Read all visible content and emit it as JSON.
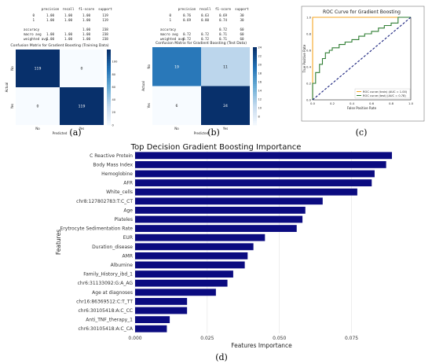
{
  "panel_labels": [
    "(a)",
    "(b)",
    "(c)",
    "(d)"
  ],
  "report_train": {
    "header": [
      "precision",
      "recall",
      "f1-score",
      "support"
    ],
    "rows": [
      [
        "0",
        "1.00",
        "1.00",
        "1.00",
        "119"
      ],
      [
        "1",
        "1.00",
        "1.00",
        "1.00",
        "119"
      ],
      [
        "accuracy",
        "",
        "",
        "1.00",
        "238"
      ],
      [
        "macro avg",
        "1.00",
        "1.00",
        "1.00",
        "238"
      ],
      [
        "weighted avg",
        "1.00",
        "1.00",
        "1.00",
        "238"
      ]
    ]
  },
  "report_test": {
    "header": [
      "precision",
      "recall",
      "f1-score",
      "support"
    ],
    "rows": [
      [
        "0",
        "0.76",
        "0.63",
        "0.69",
        "30"
      ],
      [
        "1",
        "0.69",
        "0.80",
        "0.74",
        "30"
      ],
      [
        "accuracy",
        "",
        "",
        "0.72",
        "60"
      ],
      [
        "macro avg",
        "0.72",
        "0.72",
        "0.71",
        "60"
      ],
      [
        "weighted avg",
        "0.72",
        "0.72",
        "0.71",
        "60"
      ]
    ]
  },
  "chart_data": [
    {
      "type": "heatmap",
      "title": "Confusion Matrix for Gradient Boosting (Training Data)",
      "xlabel": "Predicted",
      "ylabel": "Actual",
      "x_ticks": [
        "No",
        "Yes"
      ],
      "y_ticks": [
        "No",
        "Yes"
      ],
      "values": [
        [
          119,
          0
        ],
        [
          0,
          119
        ]
      ],
      "colorbar_ticks": [
        0,
        20,
        40,
        60,
        80,
        100
      ],
      "colorbar_range": [
        0,
        119
      ]
    },
    {
      "type": "heatmap",
      "title": "Confusion Matrix for Gradient Boosting (Test Data)",
      "xlabel": "Predicted",
      "ylabel": "Actual",
      "x_ticks": [
        "No",
        "Yes"
      ],
      "y_ticks": [
        "No",
        "Yes"
      ],
      "values": [
        [
          19,
          11
        ],
        [
          6,
          24
        ]
      ],
      "colorbar_ticks": [
        8,
        10,
        12,
        14,
        16,
        18,
        20,
        22,
        24
      ],
      "colorbar_range": [
        6,
        24
      ]
    },
    {
      "type": "line",
      "title": "ROC Curve for Gradient Boosting",
      "xlabel": "False Positive Rate",
      "ylabel": "True Positive Rate",
      "xlim": [
        0,
        1
      ],
      "ylim": [
        0,
        1
      ],
      "x_ticks": [
        0.0,
        0.2,
        0.4,
        0.6,
        0.8,
        1.0
      ],
      "y_ticks": [
        0.0,
        0.2,
        0.4,
        0.6,
        0.8,
        1.0
      ],
      "legend_position": "bottom-right",
      "series": [
        {
          "name": "ROC curve (train) (AUC = 1.00)",
          "color": "#f5a623",
          "x": [
            0,
            0,
            1
          ],
          "y": [
            0,
            1,
            1
          ]
        },
        {
          "name": "ROC curve (test) (AUC = 0.78)",
          "color": "#2e7d32",
          "x": [
            0,
            0,
            0.03,
            0.03,
            0.07,
            0.07,
            0.1,
            0.1,
            0.13,
            0.13,
            0.17,
            0.17,
            0.2,
            0.2,
            0.27,
            0.27,
            0.33,
            0.33,
            0.4,
            0.4,
            0.47,
            0.47,
            0.53,
            0.53,
            0.6,
            0.6,
            0.67,
            0.67,
            0.73,
            0.73,
            0.8,
            0.8,
            0.87,
            0.87,
            1.0
          ],
          "y": [
            0,
            0.2,
            0.2,
            0.33,
            0.33,
            0.43,
            0.43,
            0.5,
            0.5,
            0.57,
            0.57,
            0.6,
            0.6,
            0.63,
            0.63,
            0.67,
            0.67,
            0.7,
            0.7,
            0.73,
            0.73,
            0.77,
            0.77,
            0.8,
            0.8,
            0.83,
            0.83,
            0.87,
            0.87,
            0.9,
            0.9,
            0.93,
            0.93,
            1.0,
            1.0
          ]
        },
        {
          "name": "",
          "color": "#1a237e",
          "dash": true,
          "x": [
            0,
            1
          ],
          "y": [
            0,
            1
          ]
        }
      ]
    },
    {
      "type": "bar",
      "orientation": "horizontal",
      "title": "Top Decision Gradient Boosting Importance",
      "xlabel": "Features Importance",
      "ylabel": "Features",
      "bar_color": "#0b0b80",
      "xlim": [
        0,
        0.092
      ],
      "x_ticks": [
        0.0,
        0.025,
        0.05,
        0.075
      ],
      "x_tick_labels": [
        "0.000",
        "0.025",
        "0.050",
        "0.075"
      ],
      "categories": [
        "C Reactive Protein",
        "Body Mass Index",
        "Hemoglobine",
        "AFR",
        "White_cells",
        "chr8:127802783:T:C_CT",
        "Age",
        "Plateles",
        "Erytrocyte Sedimentation Rate",
        "EUR",
        "Duration_disease",
        "AMR",
        "Albumine",
        "Family_History_ibd_1",
        "chr6:31133092:G:A_AG",
        "Age at diagnoses",
        "chr16:86369512:C:T_TT",
        "chr6:30105418:A:C_CC",
        "Anti_TNF_therapy_1",
        "chr6:30105418:A:C_CA"
      ],
      "values": [
        0.089,
        0.087,
        0.083,
        0.082,
        0.077,
        0.065,
        0.059,
        0.058,
        0.056,
        0.045,
        0.041,
        0.039,
        0.038,
        0.034,
        0.032,
        0.028,
        0.018,
        0.018,
        0.012,
        0.011
      ]
    }
  ]
}
